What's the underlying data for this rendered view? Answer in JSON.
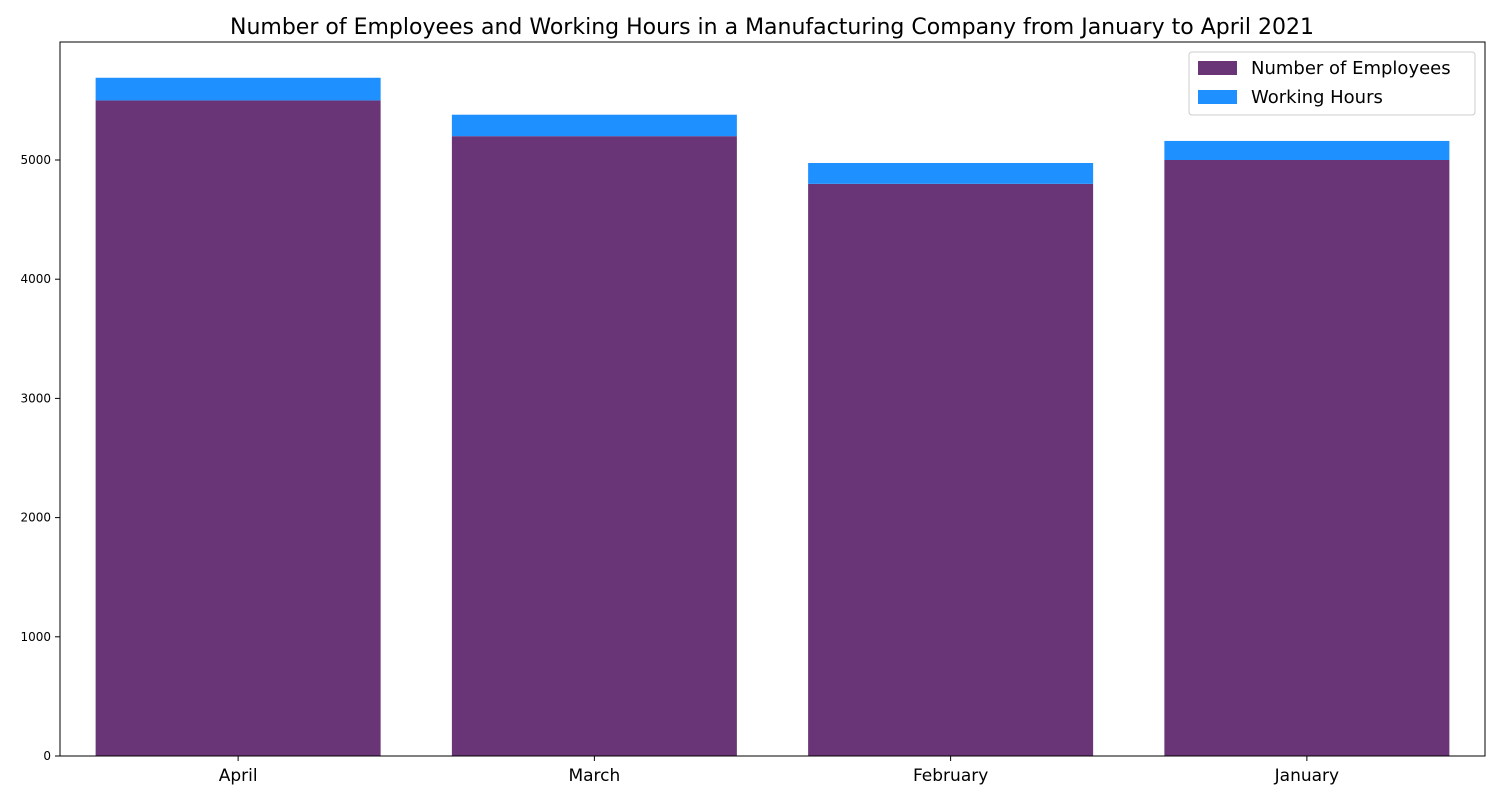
{
  "chart_data": {
    "type": "bar",
    "stacked": true,
    "title": "Number of Employees and Working Hours in a Manufacturing Company from January to April 2021",
    "xlabel": "",
    "ylabel": "",
    "categories": [
      "April",
      "March",
      "February",
      "January"
    ],
    "series": [
      {
        "name": "Number of Employees",
        "color": "#6a3577",
        "values": [
          5500,
          5200,
          4800,
          5000
        ]
      },
      {
        "name": "Working Hours",
        "color": "#1e90ff",
        "values": [
          190,
          180,
          175,
          160
        ]
      }
    ],
    "ylim": [
      0,
      5990
    ],
    "yticks": [
      0,
      1000,
      2000,
      3000,
      4000,
      5000
    ],
    "grid": false,
    "legend": "top-right"
  }
}
